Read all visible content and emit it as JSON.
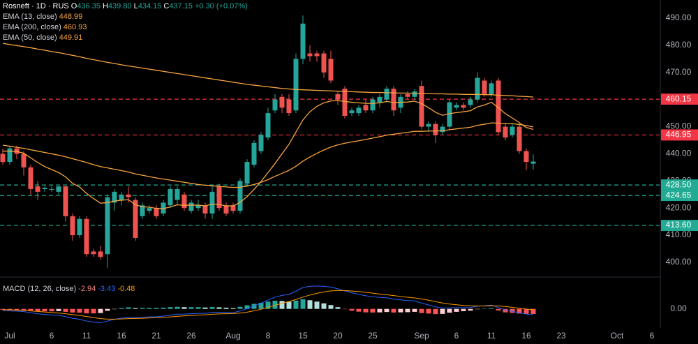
{
  "chart_data": {
    "type": "candlestick",
    "title": "Rosneft · 1D · RUS",
    "ohlc_legend": [
      {
        "key": "O",
        "value": "436.35"
      },
      {
        "key": "H",
        "value": "439.80"
      },
      {
        "key": "L",
        "value": "434.15"
      },
      {
        "key": "C",
        "value": "437.15"
      }
    ],
    "change": "+0.30 (+0.07%)",
    "up_color": "#26a69a",
    "down_color": "#ef5350",
    "categories": [
      null,
      "Jul",
      null,
      null,
      null,
      null,
      null,
      "6",
      null,
      null,
      null,
      null,
      "11",
      null,
      null,
      null,
      null,
      "16",
      null,
      null,
      null,
      null,
      "21",
      null,
      null,
      null,
      null,
      "26",
      null,
      null,
      null,
      null,
      null,
      "Aug",
      null,
      null,
      null,
      null,
      "8",
      null,
      null,
      null,
      null,
      "15",
      null,
      null,
      null,
      null,
      "20",
      null,
      null,
      null,
      null,
      "25",
      null,
      null,
      null,
      null,
      null,
      null,
      "Sep",
      null,
      null,
      null,
      null,
      "6",
      null,
      null,
      null,
      null,
      "11",
      null,
      null,
      null,
      null,
      "16",
      null,
      null,
      null,
      null,
      "23",
      null,
      null,
      null,
      null,
      null,
      null,
      null,
      "Oct",
      null,
      null,
      null,
      null,
      "6"
    ],
    "open": [
      440,
      437,
      442,
      440,
      435,
      428,
      427,
      427,
      426,
      428,
      417,
      410,
      416,
      404,
      404,
      403,
      422,
      423,
      425,
      423,
      417,
      419,
      420,
      418,
      421,
      423,
      425,
      419,
      420,
      421,
      418,
      428,
      421,
      421,
      419,
      429,
      436,
      441,
      446,
      456,
      461,
      460,
      456,
      475,
      477,
      477,
      477,
      475,
      462,
      464,
      455,
      455,
      458,
      456,
      459,
      460,
      464,
      457,
      462,
      461,
      465,
      450,
      451,
      448,
      450,
      457,
      458,
      458,
      460,
      467,
      462,
      467,
      450,
      447,
      450,
      441,
      436.35,
      null,
      null,
      null,
      null,
      null,
      null,
      null,
      null,
      null,
      null,
      null,
      null,
      null,
      null,
      null,
      null,
      null
    ],
    "high": [
      442,
      443,
      443,
      441,
      436,
      430,
      428,
      428,
      428,
      428,
      418,
      417,
      417,
      405,
      406,
      425,
      427,
      426,
      428,
      424,
      422,
      421,
      421,
      423,
      428,
      428,
      426,
      423,
      423,
      422,
      428,
      429,
      422,
      422,
      431,
      438,
      445,
      448,
      457,
      462,
      462,
      462,
      477,
      491,
      480,
      478,
      478,
      478,
      463,
      465,
      457,
      458,
      460,
      461,
      462,
      465,
      465,
      462,
      463,
      464,
      467,
      452,
      452,
      451,
      460,
      459,
      459,
      461,
      470,
      468,
      467,
      468,
      451,
      451,
      451,
      442,
      439.8,
      null,
      null,
      null,
      null,
      null,
      null,
      null,
      null,
      null,
      null,
      null,
      null,
      null,
      null,
      null,
      null,
      null
    ],
    "low": [
      436,
      436,
      438,
      432,
      425,
      423,
      426,
      426,
      425,
      415,
      408,
      409,
      402,
      402,
      401,
      398,
      419,
      421,
      422,
      408,
      416,
      418,
      416,
      417,
      420,
      421,
      419,
      418,
      419,
      416,
      416,
      419,
      417,
      418,
      418,
      428,
      435,
      440,
      445,
      455,
      455,
      454,
      455,
      473,
      474,
      474,
      468,
      466,
      458,
      453,
      454,
      454,
      455,
      455,
      457,
      459,
      454,
      455,
      460,
      460,
      449,
      448,
      444,
      447,
      449,
      456,
      456,
      457,
      459,
      461,
      461,
      447,
      445,
      446,
      440,
      434,
      434.15,
      null,
      null,
      null,
      null,
      null,
      null,
      null,
      null,
      null,
      null,
      null,
      null,
      null,
      null,
      null,
      null,
      null
    ],
    "close": [
      437,
      442,
      440,
      435,
      427,
      426,
      427.5,
      427,
      428,
      417,
      410,
      416,
      403,
      403,
      402,
      424,
      426,
      425,
      424,
      409,
      421,
      420,
      417,
      422,
      427,
      427,
      420,
      422,
      421,
      418,
      426,
      420,
      418,
      419,
      430,
      437,
      444,
      447,
      455,
      460,
      457,
      455,
      475,
      488,
      476,
      476,
      470,
      467,
      460,
      454,
      456,
      457,
      456,
      460,
      461,
      464,
      456,
      461,
      461,
      463,
      450,
      451,
      447,
      450,
      459,
      458,
      457,
      460,
      468,
      462,
      466,
      448,
      446,
      450,
      441,
      437,
      437.15,
      null,
      null,
      null,
      null,
      null,
      null,
      null,
      null,
      null,
      null,
      null,
      null,
      null,
      null,
      null,
      null,
      null
    ],
    "series": [
      {
        "name": "EMA (13, close)",
        "color": "#f7a440",
        "values": [
          441.0,
          441.0,
          440.9,
          440.2,
          438.5,
          436.8,
          435.3,
          434.2,
          433.1,
          431.5,
          429.1,
          427.8,
          425.4,
          423.5,
          421.8,
          422.0,
          422.6,
          422.9,
          423.1,
          421.2,
          420.5,
          420.3,
          419.9,
          419.8,
          420.4,
          421.2,
          421.0,
          421.1,
          421.1,
          420.8,
          421.5,
          421.3,
          420.8,
          420.8,
          422.1,
          424.2,
          426.9,
          429.8,
          433.1,
          436.4,
          440.0,
          443.5,
          448.0,
          452.5,
          455.5,
          457.5,
          458.8,
          459.5,
          459.6,
          459.3,
          459.0,
          458.8,
          458.6,
          458.6,
          458.8,
          459.3,
          458.9,
          459.0,
          459.1,
          459.4,
          458.5,
          457.0,
          455.3,
          454.2,
          454.8,
          455.2,
          455.5,
          455.9,
          457.3,
          458.0,
          459.0,
          457.0,
          454.8,
          453.2,
          451.5,
          449.7,
          448.99,
          null,
          null,
          null,
          null,
          null,
          null,
          null,
          null,
          null,
          null,
          null,
          null,
          null,
          null,
          null,
          null,
          null
        ]
      },
      {
        "name": "EMA (200, close)",
        "color": "#f7a440",
        "values": [
          480.7,
          480.3,
          479.9,
          479.5,
          479.1,
          478.6,
          478.2,
          477.7,
          477.3,
          476.8,
          476.3,
          475.8,
          475.2,
          474.7,
          474.2,
          473.7,
          473.3,
          472.8,
          472.4,
          472.0,
          471.6,
          471.2,
          470.8,
          470.4,
          470.0,
          469.6,
          469.2,
          468.8,
          468.4,
          468.0,
          467.6,
          467.2,
          466.8,
          466.4,
          466.0,
          465.6,
          465.3,
          465.0,
          464.7,
          464.4,
          464.1,
          463.9,
          463.7,
          463.6,
          463.5,
          463.4,
          463.3,
          463.2,
          463.1,
          463.0,
          462.9,
          462.8,
          462.7,
          462.6,
          462.6,
          462.5,
          462.5,
          462.4,
          462.4,
          462.3,
          462.2,
          462.2,
          462.1,
          462.1,
          462.0,
          462.0,
          461.9,
          461.9,
          461.9,
          461.8,
          461.8,
          461.6,
          461.5,
          461.4,
          461.2,
          461.1,
          460.93,
          null,
          null,
          null,
          null,
          null,
          null,
          null,
          null,
          null,
          null,
          null,
          null,
          null,
          null,
          null,
          null,
          null
        ]
      },
      {
        "name": "EMA (50, close)",
        "color": "#f7a440",
        "values": [
          443.2,
          442.8,
          442.4,
          442.0,
          441.5,
          441.0,
          440.5,
          440.0,
          439.5,
          438.9,
          438.2,
          437.5,
          436.8,
          436.0,
          435.3,
          434.8,
          434.3,
          433.8,
          433.3,
          432.6,
          432.1,
          431.6,
          431.1,
          430.7,
          430.3,
          429.9,
          429.5,
          429.1,
          428.7,
          428.4,
          428.2,
          428.0,
          427.8,
          427.6,
          427.7,
          428.1,
          428.7,
          429.5,
          430.5,
          431.7,
          432.8,
          433.9,
          435.4,
          437.3,
          438.8,
          440.2,
          441.4,
          442.5,
          443.3,
          443.9,
          444.4,
          444.8,
          445.3,
          445.8,
          446.3,
          446.9,
          447.2,
          447.6,
          447.9,
          448.3,
          448.3,
          448.4,
          448.4,
          448.5,
          448.9,
          449.2,
          449.5,
          449.8,
          450.5,
          450.9,
          451.4,
          451.3,
          451.2,
          451.1,
          450.8,
          450.4,
          449.91,
          null,
          null,
          null,
          null,
          null,
          null,
          null,
          null,
          null,
          null,
          null,
          null,
          null,
          null,
          null,
          null,
          null
        ]
      }
    ],
    "levels": [
      {
        "value": 460.15,
        "color": "#f23645"
      },
      {
        "value": 446.95,
        "color": "#f23645"
      },
      {
        "value": 428.5,
        "label": "428.50",
        "color": "#22ab94"
      },
      {
        "value": 424.65,
        "color": "#22ab94"
      },
      {
        "value": 413.6,
        "label": "413.60",
        "color": "#22ab94"
      }
    ],
    "ylim": [
      395.1,
      496.7
    ],
    "yticks": [
      {
        "value": 490,
        "label": "490.00"
      },
      {
        "value": 480,
        "label": "480.00"
      },
      {
        "value": 470,
        "label": "470.00"
      },
      {
        "value": 460,
        "label": "460.00"
      },
      {
        "value": 450,
        "label": "450.00"
      },
      {
        "value": 440,
        "label": "440.00"
      },
      {
        "value": 430,
        "label": "430.00"
      },
      {
        "value": 420,
        "label": "420.00"
      },
      {
        "value": 410,
        "label": "410.00"
      },
      {
        "value": 400,
        "label": "400.00"
      }
    ],
    "grid": false,
    "macd": {
      "title": "MACD (12, 26, close)",
      "ylim": [
        -11,
        18
      ],
      "yticks": [
        {
          "value": 0,
          "label": "0.00"
        }
      ],
      "histogram": {
        "colors": [
          "#26a69a",
          "#b2dfdb",
          "#ffcdd2",
          "#ff5252"
        ],
        "legend_color": "#f08080",
        "values": [
          -0.5,
          -0.6,
          -0.6,
          -0.7,
          -1.0,
          -1.3,
          -1.4,
          -1.4,
          -1.3,
          -1.7,
          -2.1,
          -2.2,
          -2.6,
          -2.6,
          -2.4,
          -1.1,
          -0.1,
          0.5,
          0.9,
          0.5,
          0.6,
          0.6,
          0.6,
          0.7,
          1.0,
          1.2,
          1.0,
          1.0,
          1.0,
          0.8,
          1.1,
          0.9,
          0.7,
          0.5,
          1.2,
          2.1,
          2.9,
          3.5,
          4.2,
          4.7,
          4.6,
          4.2,
          4.8,
          5.6,
          5.0,
          4.2,
          3.2,
          2.2,
          1.0,
          -0.2,
          -1.0,
          -1.6,
          -2.0,
          -2.1,
          -2.0,
          -1.8,
          -2.1,
          -2.0,
          -1.9,
          -1.7,
          -2.4,
          -2.7,
          -3.0,
          -2.9,
          -2.2,
          -1.7,
          -1.3,
          -1.0,
          -0.1,
          0.1,
          0.4,
          -0.9,
          -2.0,
          -2.3,
          -2.7,
          -2.9,
          -2.94,
          null,
          null,
          null,
          null,
          null,
          null,
          null,
          null,
          null,
          null,
          null,
          null,
          null,
          null,
          null,
          null,
          null
        ]
      },
      "series": [
        {
          "color": "#2962ff",
          "values": [
            -1.0,
            -1.2,
            -1.3,
            -1.6,
            -2.2,
            -2.8,
            -3.2,
            -3.5,
            -3.7,
            -4.5,
            -5.4,
            -6.0,
            -7.0,
            -7.6,
            -8.0,
            -7.0,
            -6.0,
            -5.3,
            -4.7,
            -5.0,
            -4.8,
            -4.6,
            -4.5,
            -4.2,
            -3.6,
            -3.1,
            -3.0,
            -2.8,
            -2.6,
            -2.6,
            -2.0,
            -2.0,
            -2.1,
            -2.2,
            -1.2,
            0.2,
            1.8,
            3.3,
            5.1,
            6.8,
            7.8,
            8.4,
            10.2,
            12.4,
            13.0,
            13.2,
            13.0,
            12.6,
            11.6,
            10.4,
            9.3,
            8.4,
            7.6,
            7.0,
            6.6,
            6.4,
            5.6,
            5.2,
            4.8,
            4.6,
            3.3,
            2.3,
            1.2,
            0.5,
            0.6,
            0.7,
            0.7,
            0.8,
            1.6,
            1.8,
            2.2,
            0.8,
            -0.6,
            -1.4,
            -2.3,
            -3.0,
            -3.43,
            null,
            null,
            null,
            null,
            null,
            null,
            null,
            null,
            null,
            null,
            null,
            null,
            null,
            null,
            null,
            null,
            null
          ]
        },
        {
          "color": "#ff9800",
          "values": [
            -0.5,
            -0.6,
            -0.7,
            -0.9,
            -1.2,
            -1.5,
            -1.8,
            -2.1,
            -2.4,
            -2.8,
            -3.3,
            -3.8,
            -4.4,
            -5.0,
            -5.6,
            -5.9,
            -5.9,
            -5.8,
            -5.6,
            -5.5,
            -5.4,
            -5.2,
            -5.1,
            -4.9,
            -4.6,
            -4.3,
            -4.0,
            -3.8,
            -3.6,
            -3.4,
            -3.1,
            -2.9,
            -2.8,
            -2.7,
            -2.4,
            -1.9,
            -1.1,
            -0.2,
            0.9,
            2.1,
            3.2,
            4.2,
            5.4,
            6.8,
            8.0,
            9.0,
            9.8,
            10.4,
            10.6,
            10.6,
            10.3,
            10.0,
            9.6,
            9.1,
            8.6,
            8.2,
            7.7,
            7.2,
            6.7,
            6.3,
            5.7,
            5.0,
            4.2,
            3.4,
            2.8,
            2.4,
            2.0,
            1.8,
            1.7,
            1.7,
            1.8,
            1.7,
            1.4,
            0.9,
            0.4,
            -0.1,
            -0.48,
            null,
            null,
            null,
            null,
            null,
            null,
            null,
            null,
            null,
            null,
            null,
            null,
            null,
            null,
            null,
            null,
            null
          ]
        }
      ]
    }
  }
}
